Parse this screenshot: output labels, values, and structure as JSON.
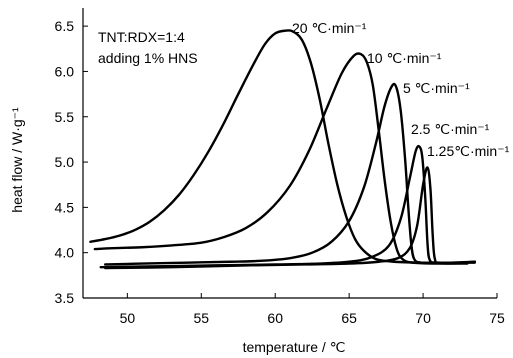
{
  "chart_data": {
    "type": "line",
    "xlabel": "temperature / ℃",
    "ylabel": "heat flow / W·g⁻¹",
    "xlim": [
      47,
      75
    ],
    "ylim": [
      3.5,
      6.7
    ],
    "x_ticks": [
      50,
      55,
      60,
      65,
      70,
      75
    ],
    "y_ticks": [
      3.5,
      4.0,
      4.5,
      5.0,
      5.5,
      6.0,
      6.5
    ],
    "grid": false,
    "annotations": [
      "TNT:RDX=1:4",
      "adding 1% HNS"
    ],
    "series": [
      {
        "name": "20 ℃·min⁻¹",
        "points": [
          [
            47.5,
            4.12
          ],
          [
            48.5,
            4.15
          ],
          [
            49.5,
            4.19
          ],
          [
            50.5,
            4.25
          ],
          [
            51.5,
            4.34
          ],
          [
            52.5,
            4.47
          ],
          [
            53.5,
            4.64
          ],
          [
            54.5,
            4.86
          ],
          [
            55.5,
            5.12
          ],
          [
            56.5,
            5.42
          ],
          [
            57.5,
            5.75
          ],
          [
            58.5,
            6.07
          ],
          [
            59.3,
            6.3
          ],
          [
            60.0,
            6.42
          ],
          [
            60.7,
            6.45
          ],
          [
            61.2,
            6.44
          ],
          [
            61.8,
            6.35
          ],
          [
            62.4,
            6.1
          ],
          [
            63.0,
            5.7
          ],
          [
            63.6,
            5.2
          ],
          [
            64.2,
            4.75
          ],
          [
            64.8,
            4.4
          ],
          [
            65.4,
            4.15
          ],
          [
            66.0,
            4.02
          ],
          [
            66.8,
            3.93
          ],
          [
            68.0,
            3.9
          ],
          [
            70.0,
            3.89
          ],
          [
            73.0,
            3.89
          ]
        ]
      },
      {
        "name": "10 ℃·min⁻¹",
        "points": [
          [
            47.8,
            4.04
          ],
          [
            49,
            4.05
          ],
          [
            51,
            4.06
          ],
          [
            53,
            4.08
          ],
          [
            55,
            4.11
          ],
          [
            56.5,
            4.17
          ],
          [
            58,
            4.27
          ],
          [
            59.5,
            4.45
          ],
          [
            61,
            4.74
          ],
          [
            62.3,
            5.13
          ],
          [
            63.5,
            5.6
          ],
          [
            64.5,
            5.98
          ],
          [
            65.3,
            6.17
          ],
          [
            65.8,
            6.19
          ],
          [
            66.2,
            6.1
          ],
          [
            66.6,
            5.85
          ],
          [
            67.0,
            5.35
          ],
          [
            67.4,
            4.8
          ],
          [
            67.8,
            4.35
          ],
          [
            68.2,
            4.05
          ],
          [
            68.6,
            3.93
          ],
          [
            69.3,
            3.89
          ],
          [
            71,
            3.88
          ],
          [
            73,
            3.88
          ]
        ]
      },
      {
        "name": "5 ℃·min⁻¹",
        "points": [
          [
            48.5,
            3.87
          ],
          [
            51,
            3.88
          ],
          [
            54,
            3.89
          ],
          [
            57,
            3.9
          ],
          [
            59,
            3.91
          ],
          [
            61,
            3.94
          ],
          [
            62.5,
            4.0
          ],
          [
            63.8,
            4.12
          ],
          [
            65,
            4.35
          ],
          [
            66,
            4.72
          ],
          [
            66.8,
            5.2
          ],
          [
            67.4,
            5.62
          ],
          [
            67.9,
            5.84
          ],
          [
            68.2,
            5.82
          ],
          [
            68.5,
            5.55
          ],
          [
            68.8,
            5.0
          ],
          [
            69.0,
            4.5
          ],
          [
            69.2,
            4.1
          ],
          [
            69.4,
            3.93
          ],
          [
            69.9,
            3.89
          ],
          [
            71.5,
            3.89
          ],
          [
            73.5,
            3.89
          ]
        ]
      },
      {
        "name": "2.5 ℃·min⁻¹",
        "points": [
          [
            48.2,
            3.84
          ],
          [
            52,
            3.85
          ],
          [
            56,
            3.86
          ],
          [
            60,
            3.87
          ],
          [
            63,
            3.88
          ],
          [
            65,
            3.9
          ],
          [
            66.5,
            3.95
          ],
          [
            67.7,
            4.08
          ],
          [
            68.5,
            4.38
          ],
          [
            69.1,
            4.82
          ],
          [
            69.5,
            5.12
          ],
          [
            69.75,
            5.17
          ],
          [
            69.95,
            5.05
          ],
          [
            70.15,
            4.6
          ],
          [
            70.3,
            4.1
          ],
          [
            70.45,
            3.92
          ],
          [
            70.9,
            3.89
          ],
          [
            72.5,
            3.89
          ],
          [
            73.5,
            3.9
          ]
        ]
      },
      {
        "name": "1.25℃·min⁻¹",
        "points": [
          [
            48.5,
            3.83
          ],
          [
            53,
            3.84
          ],
          [
            58,
            3.86
          ],
          [
            62,
            3.87
          ],
          [
            65,
            3.88
          ],
          [
            67,
            3.9
          ],
          [
            68.3,
            3.94
          ],
          [
            69.1,
            4.05
          ],
          [
            69.6,
            4.3
          ],
          [
            70.0,
            4.75
          ],
          [
            70.3,
            4.94
          ],
          [
            70.5,
            4.7
          ],
          [
            70.65,
            4.2
          ],
          [
            70.8,
            3.93
          ],
          [
            71.2,
            3.89
          ],
          [
            73.5,
            3.9
          ]
        ]
      }
    ],
    "series_label_positions_text": [
      "20 ℃·min⁻¹",
      "10 ℃·min⁻¹",
      "5 ℃·min⁻¹",
      "2.5 ℃·min⁻¹",
      "1.25℃·min⁻¹"
    ]
  }
}
